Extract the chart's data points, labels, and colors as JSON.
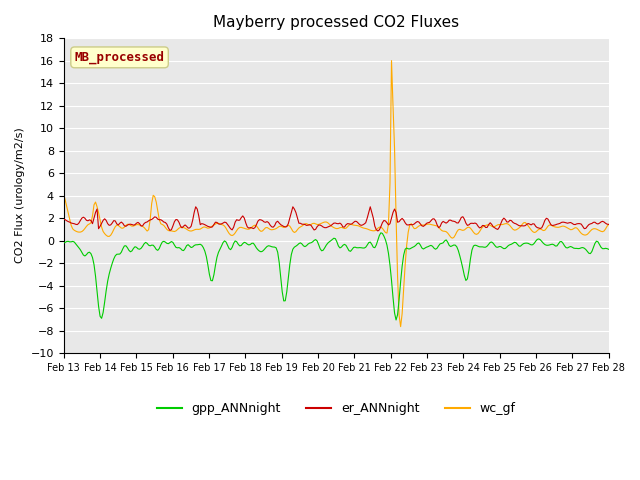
{
  "title": "Mayberry processed CO2 Fluxes",
  "ylabel": "CO2 Flux (urology/m2/s)",
  "ylim": [
    -10,
    18
  ],
  "yticks": [
    -10,
    -8,
    -6,
    -4,
    -2,
    0,
    2,
    4,
    6,
    8,
    10,
    12,
    14,
    16,
    18
  ],
  "xlim": [
    0,
    15
  ],
  "xtick_labels": [
    "Feb 13",
    "Feb 14",
    "Feb 15",
    "Feb 16",
    "Feb 17",
    "Feb 18",
    "Feb 19",
    "Feb 20",
    "Feb 21",
    "Feb 22",
    "Feb 23",
    "Feb 24",
    "Feb 25",
    "Feb 26",
    "Feb 27",
    "Feb 28"
  ],
  "line_colors": {
    "gpp": "#00cc00",
    "er": "#cc0000",
    "wc": "#ffaa00"
  },
  "legend_labels": [
    "gpp_ANNnight",
    "er_ANNnight",
    "wc_gf"
  ],
  "annotation_text": "MB_processed",
  "annotation_color": "#990000",
  "annotation_bg": "#ffffcc",
  "background_color": "#e8e8e8",
  "seed": 42,
  "n_points": 360
}
